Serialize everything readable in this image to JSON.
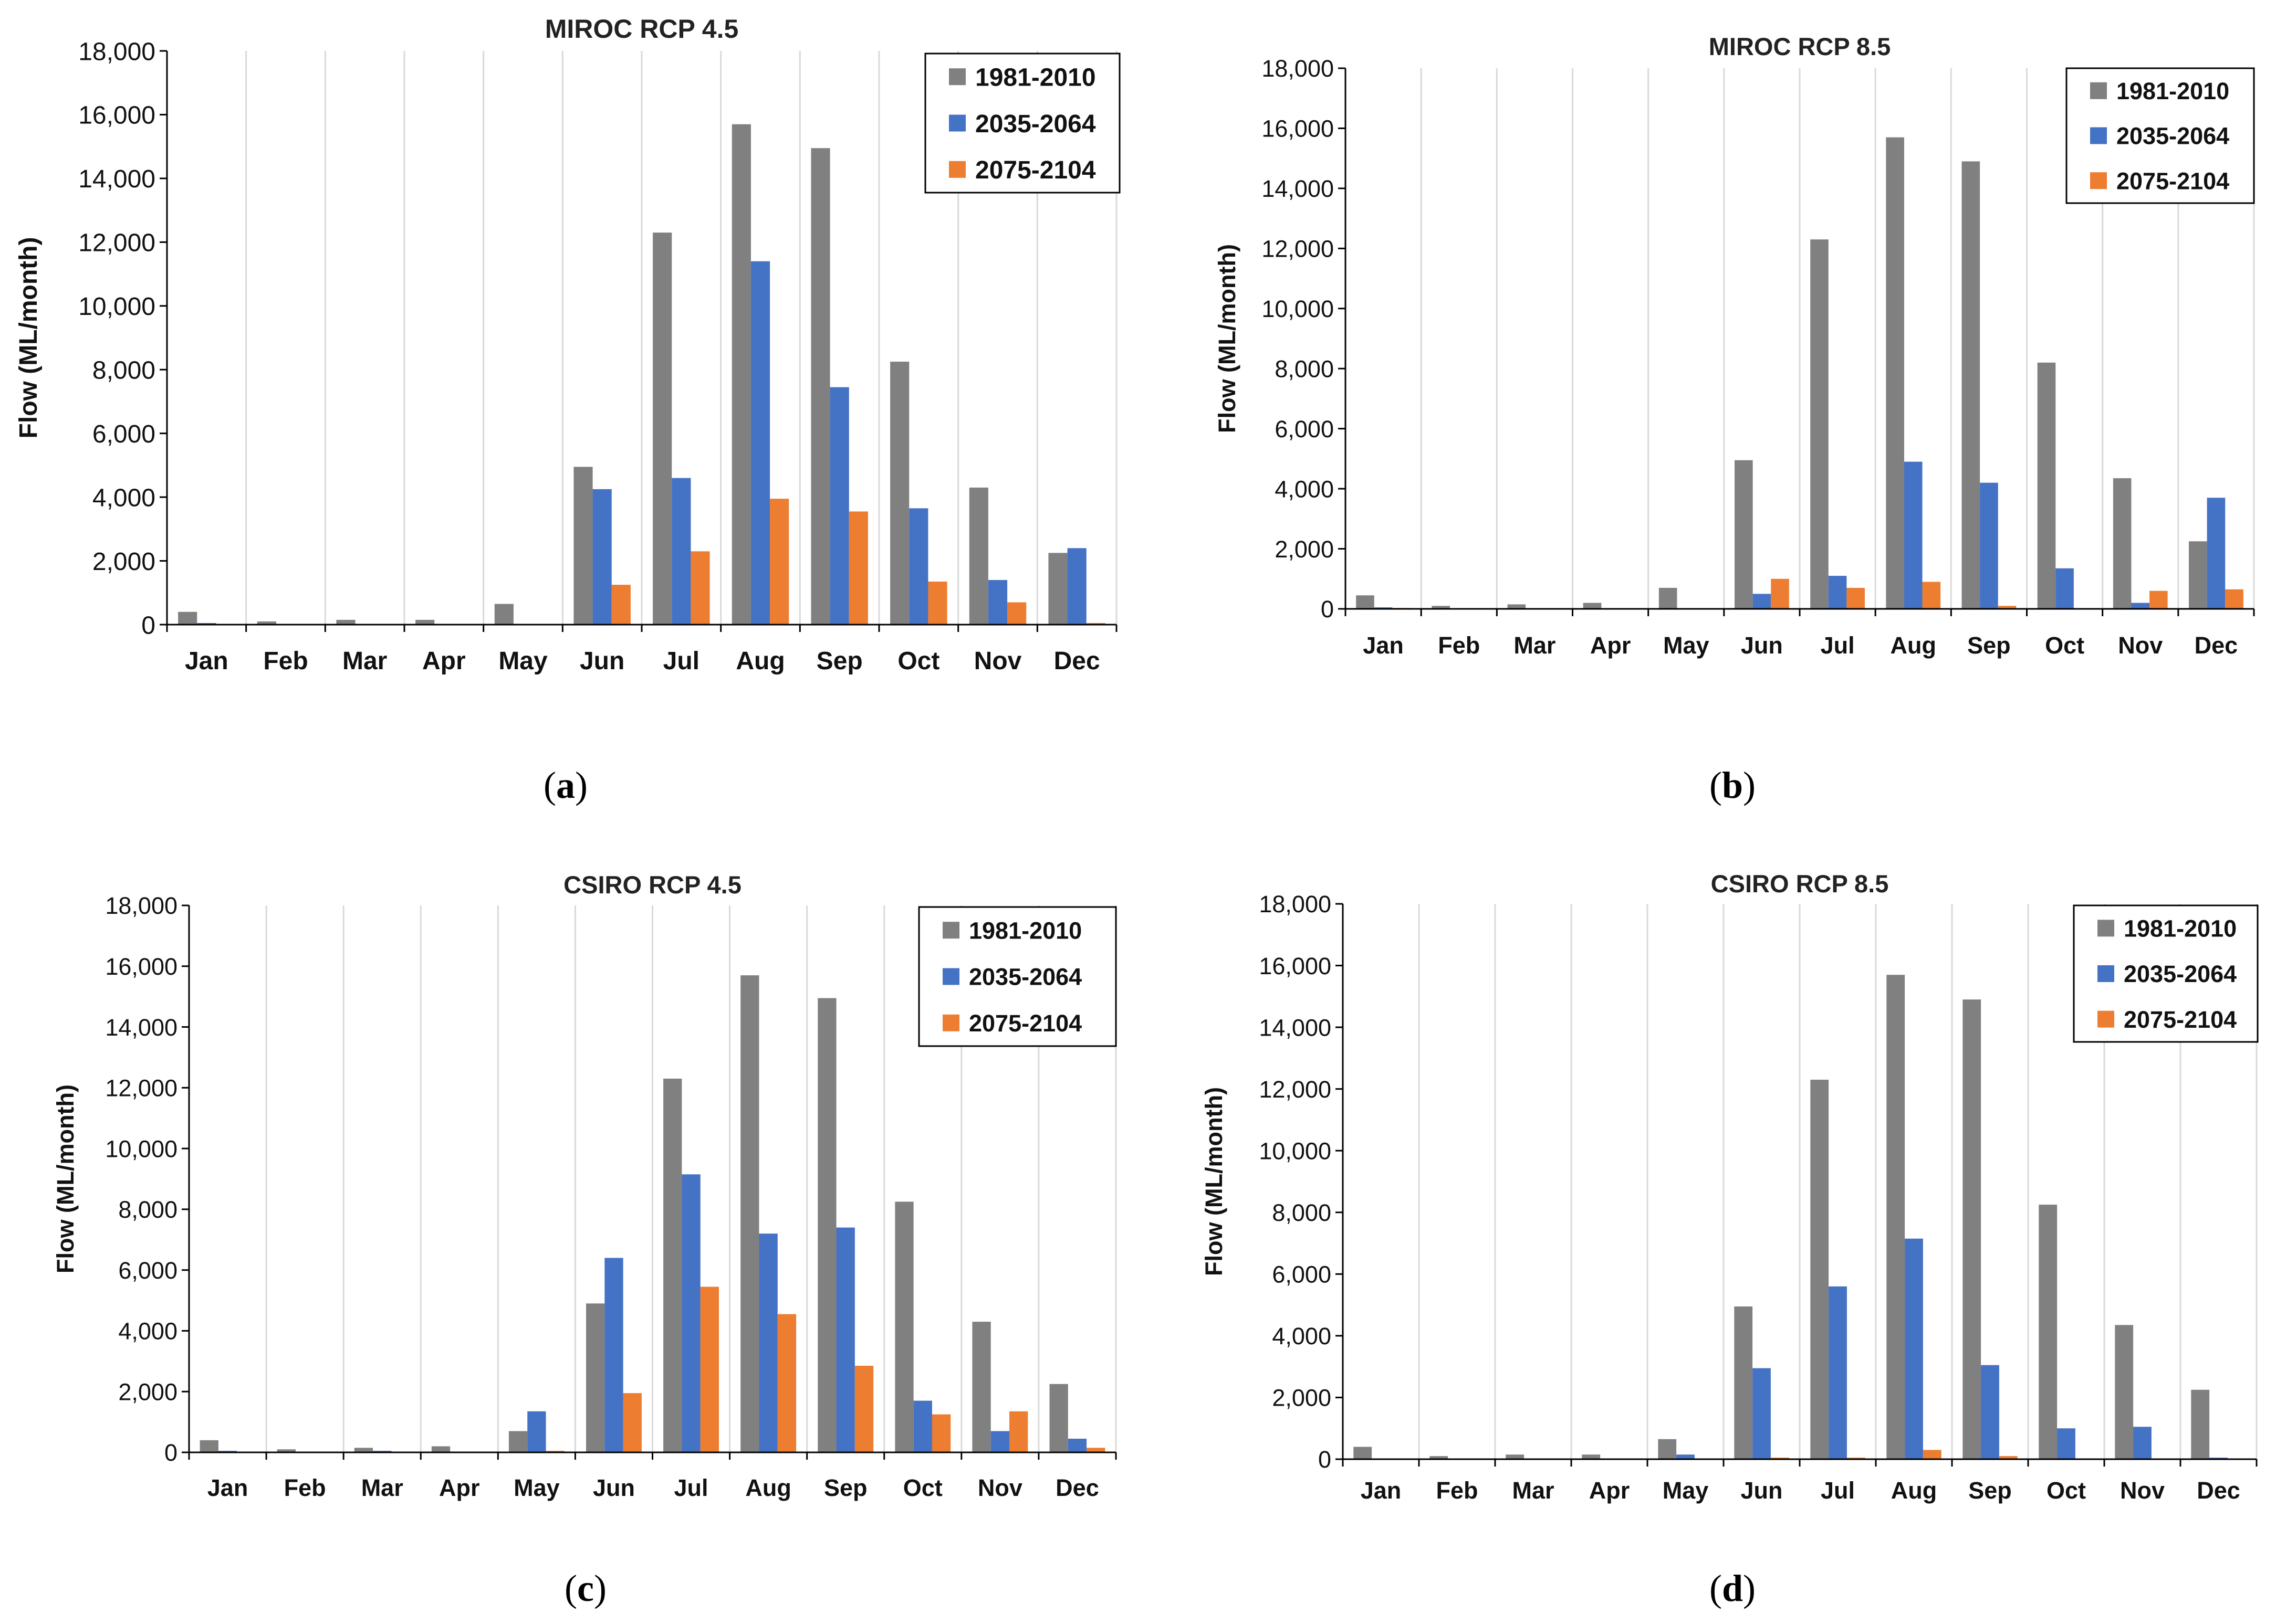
{
  "colors": {
    "series_1": "#808080",
    "series_2": "#4472C4",
    "series_3": "#ED7D31"
  },
  "chart_data": [
    {
      "type": "bar",
      "title": "MIROC RCP 4.5",
      "caption": "a",
      "ylabel": "Flow (ML/month)",
      "xlabel": "",
      "ylim": [
        0,
        18000
      ],
      "yticks": [
        "0",
        "2,000",
        "4,000",
        "6,000",
        "8,000",
        "10,000",
        "12,000",
        "14,000",
        "16,000",
        "18,000"
      ],
      "categories": [
        "Jan",
        "Feb",
        "Mar",
        "Apr",
        "May",
        "Jun",
        "Jul",
        "Aug",
        "Sep",
        "Oct",
        "Nov",
        "Dec"
      ],
      "legend_position": "top-right",
      "grid": "vertical",
      "series": [
        {
          "name": "1981-2010",
          "values": [
            400,
            100,
            150,
            150,
            650,
            4950,
            12300,
            15700,
            14950,
            8250,
            4300,
            2250
          ]
        },
        {
          "name": "2035-2064",
          "values": [
            50,
            0,
            0,
            0,
            0,
            4250,
            4600,
            11400,
            7450,
            3650,
            1400,
            2400
          ]
        },
        {
          "name": "2075-2104",
          "values": [
            0,
            0,
            0,
            0,
            0,
            1250,
            2300,
            3950,
            3550,
            1350,
            700,
            50
          ]
        }
      ]
    },
    {
      "type": "bar",
      "title": "MIROC RCP 8.5",
      "caption": "b",
      "ylabel": "Flow (ML/month)",
      "xlabel": "",
      "ylim": [
        0,
        18000
      ],
      "yticks": [
        "0",
        "2,000",
        "4,000",
        "6,000",
        "8,000",
        "10,000",
        "12,000",
        "14,000",
        "16,000",
        "18,000"
      ],
      "categories": [
        "Jan",
        "Feb",
        "Mar",
        "Apr",
        "May",
        "Jun",
        "Jul",
        "Aug",
        "Sep",
        "Oct",
        "Nov",
        "Dec"
      ],
      "legend_position": "top-right",
      "grid": "vertical",
      "series": [
        {
          "name": "1981-2010",
          "values": [
            450,
            100,
            150,
            200,
            700,
            4950,
            12300,
            15700,
            14900,
            8200,
            4350,
            2250
          ]
        },
        {
          "name": "2035-2064",
          "values": [
            50,
            0,
            0,
            0,
            0,
            500,
            1100,
            4900,
            4200,
            1350,
            200,
            3700
          ]
        },
        {
          "name": "2075-2104",
          "values": [
            30,
            0,
            0,
            0,
            0,
            1000,
            700,
            900,
            100,
            0,
            600,
            650
          ]
        }
      ]
    },
    {
      "type": "bar",
      "title": "CSIRO RCP 4.5",
      "caption": "c",
      "ylabel": "Flow (ML/month)",
      "xlabel": "",
      "ylim": [
        0,
        18000
      ],
      "yticks": [
        "0",
        "2,000",
        "4,000",
        "6,000",
        "8,000",
        "10,000",
        "12,000",
        "14,000",
        "16,000",
        "18,000"
      ],
      "categories": [
        "Jan",
        "Feb",
        "Mar",
        "Apr",
        "May",
        "Jun",
        "Jul",
        "Aug",
        "Sep",
        "Oct",
        "Nov",
        "Dec"
      ],
      "legend_position": "top-right",
      "grid": "vertical",
      "series": [
        {
          "name": "1981-2010",
          "values": [
            400,
            100,
            150,
            200,
            700,
            4900,
            12300,
            15700,
            14950,
            8250,
            4300,
            2250
          ]
        },
        {
          "name": "2035-2064",
          "values": [
            50,
            0,
            50,
            0,
            1350,
            6400,
            9150,
            7200,
            7400,
            1700,
            700,
            450
          ]
        },
        {
          "name": "2075-2104",
          "values": [
            0,
            0,
            0,
            0,
            50,
            1950,
            5450,
            4550,
            2850,
            1250,
            1350,
            150
          ]
        }
      ]
    },
    {
      "type": "bar",
      "title": "CSIRO RCP 8.5",
      "caption": "d",
      "ylabel": "Flow (ML/month)",
      "xlabel": "",
      "ylim": [
        0,
        18000
      ],
      "yticks": [
        "0",
        "2,000",
        "4,000",
        "6,000",
        "8,000",
        "10,000",
        "12,000",
        "14,000",
        "16,000",
        "18,000"
      ],
      "categories": [
        "Jan",
        "Feb",
        "Mar",
        "Apr",
        "May",
        "Jun",
        "Jul",
        "Aug",
        "Sep",
        "Oct",
        "Nov",
        "Dec"
      ],
      "legend_position": "top-right",
      "grid": "vertical",
      "series": [
        {
          "name": "1981-2010",
          "values": [
            400,
            100,
            150,
            150,
            650,
            4950,
            12300,
            15700,
            14900,
            8250,
            4350,
            2250
          ]
        },
        {
          "name": "2035-2064",
          "values": [
            0,
            0,
            0,
            0,
            150,
            2950,
            5600,
            7150,
            3050,
            1000,
            1050,
            50
          ]
        },
        {
          "name": "2075-2104",
          "values": [
            0,
            0,
            0,
            0,
            0,
            50,
            50,
            300,
            100,
            0,
            0,
            0
          ]
        }
      ]
    }
  ]
}
